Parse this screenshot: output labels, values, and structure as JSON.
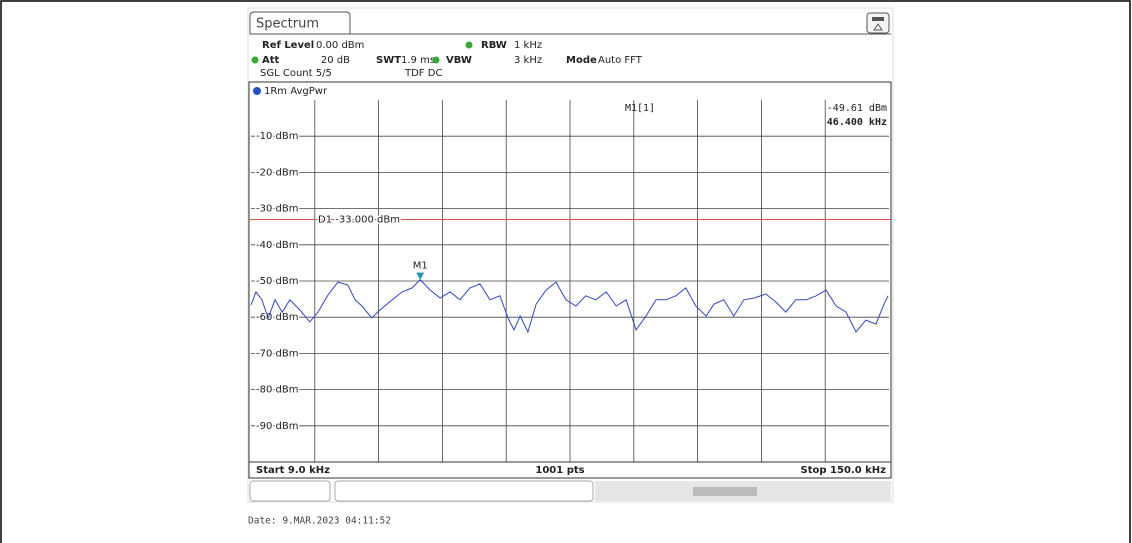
{
  "instrument": {
    "tab": "Spectrum",
    "ref_level_label": "Ref Level",
    "ref_level": "0.00 dBm",
    "att_label": "Att",
    "att": "20 dB",
    "swt_label": "SWT",
    "swt": "1.9 ms",
    "rbw_label": "RBW",
    "rbw": "1 kHz",
    "vbw_label": "VBW",
    "vbw": "3 kHz",
    "mode_label": "Mode",
    "mode": "Auto FFT",
    "sgl_count": "SGL Count 5/5",
    "tdf": "TDF DC"
  },
  "chart_data": {
    "type": "line",
    "trace_label": "1Rm AvgPwr",
    "xlim": [
      9,
      150
    ],
    "ylim": [
      -100,
      0
    ],
    "yticks": [
      {
        "value": -10,
        "label": "-10 dBm"
      },
      {
        "value": -20,
        "label": "-20 dBm"
      },
      {
        "value": -30,
        "label": "-30 dBm"
      },
      {
        "value": -40,
        "label": "-40 dBm"
      },
      {
        "value": -50,
        "label": "-50 dBm"
      },
      {
        "value": -60,
        "label": "-60 dBm"
      },
      {
        "value": -70,
        "label": "-70 dBm"
      },
      {
        "value": -80,
        "label": "-80 dBm"
      },
      {
        "value": -90,
        "label": "-90 dBm"
      }
    ],
    "grid": true,
    "series": [
      {
        "color": "#3347c2",
        "x": [
          9.0,
          10.1,
          11.4,
          12.8,
          14.3,
          15.9,
          17.6,
          19.8,
          22.0,
          23.8,
          26.0,
          28.2,
          30.4,
          32.0,
          33.5,
          35.7,
          37.5,
          40.2,
          42.4,
          44.6,
          46.4,
          48.6,
          50.8,
          53.0,
          55.2,
          57.4,
          59.6,
          61.8,
          64.0,
          65.8,
          67.1,
          68.5,
          70.2,
          72.0,
          74.2,
          76.4,
          78.6,
          80.8,
          83.0,
          85.2,
          87.5,
          89.7,
          91.9,
          94.1,
          96.3,
          98.5,
          100.7,
          102.9,
          105.1,
          107.3,
          109.6,
          111.3,
          113.5,
          115.7,
          117.9,
          120.2,
          122.8,
          125.0,
          127.2,
          129.4,
          131.7,
          133.9,
          136.1,
          138.3,
          140.5,
          142.7,
          144.9,
          147.1,
          148.9,
          149.8
        ],
        "values": [
          -56.6,
          -53.0,
          -55.2,
          -60.2,
          -55.2,
          -58.6,
          -55.2,
          -58.0,
          -61.3,
          -58.6,
          -53.9,
          -50.3,
          -51.1,
          -55.2,
          -56.9,
          -60.2,
          -58.0,
          -55.2,
          -53.0,
          -51.9,
          -49.61,
          -52.5,
          -54.7,
          -53.0,
          -55.2,
          -51.9,
          -50.8,
          -55.2,
          -54.1,
          -60.2,
          -63.5,
          -59.7,
          -64.1,
          -56.4,
          -52.5,
          -50.3,
          -55.2,
          -56.9,
          -54.1,
          -55.2,
          -53.0,
          -56.9,
          -55.2,
          -63.5,
          -59.7,
          -55.2,
          -55.2,
          -54.1,
          -51.9,
          -56.9,
          -59.7,
          -56.4,
          -55.2,
          -59.7,
          -55.2,
          -54.7,
          -53.6,
          -55.8,
          -58.6,
          -55.2,
          -55.2,
          -54.1,
          -52.5,
          -56.9,
          -58.6,
          -64.1,
          -60.8,
          -61.9,
          -56.4,
          -54.1
        ]
      }
    ],
    "display_line": {
      "label": "D1 -33.000 dBm",
      "value": -33,
      "color": "#d9534f"
    },
    "marker": {
      "name": "M1",
      "readout": "M1[1]",
      "x": 46.4,
      "y": -49.61,
      "y_label": "-49.61 dBm",
      "x_label": "46.400 kHz",
      "color": "#1f8fc4"
    },
    "start_label": "Start 9.0 kHz",
    "points_label": "1001 pts",
    "stop_label": "Stop 150.0 kHz"
  },
  "date": "Date: 9.MAR.2023  04:11:52"
}
